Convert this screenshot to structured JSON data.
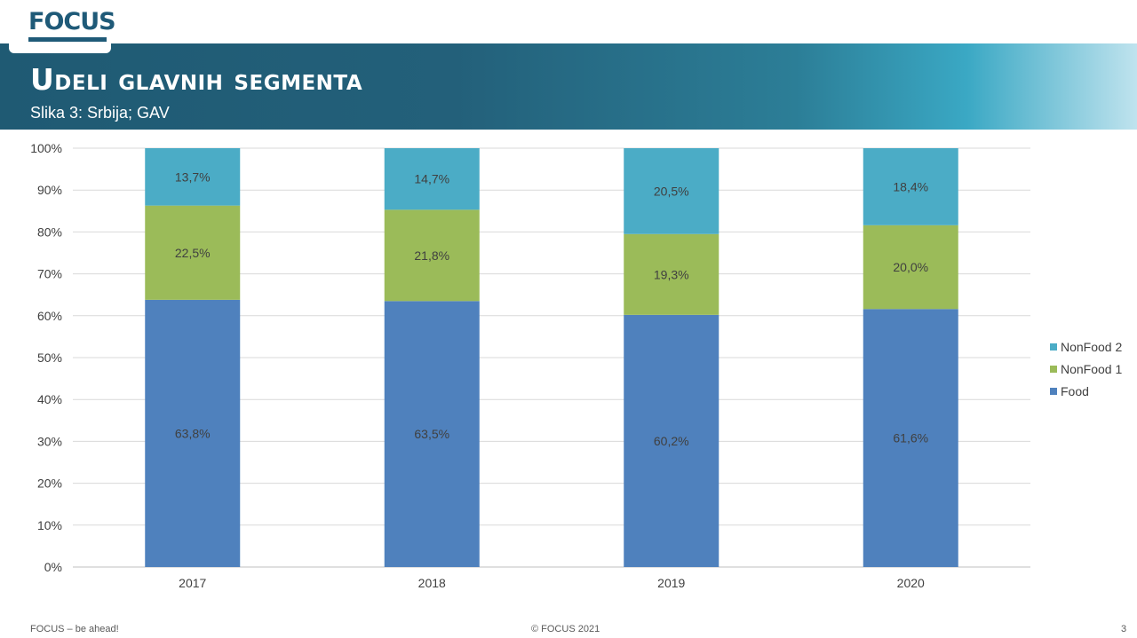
{
  "header": {
    "logo": "FOCUS",
    "title": "Udeli glavnih segmenta",
    "subtitle": "Slika 3: Srbija; GAV"
  },
  "footer": {
    "left": "FOCUS – be ahead!",
    "center": "© FOCUS 2021",
    "page": "3"
  },
  "chart_data": {
    "type": "bar",
    "stacked": true,
    "percent_stacked": true,
    "categories": [
      "2017",
      "2018",
      "2019",
      "2020"
    ],
    "series": [
      {
        "name": "Food",
        "color": "#4f81bd",
        "values": [
          63.8,
          63.5,
          60.2,
          61.6
        ],
        "labels": [
          "63,8%",
          "63,5%",
          "60,2%",
          "61,6%"
        ]
      },
      {
        "name": "NonFood 1",
        "color": "#9bbb59",
        "values": [
          22.5,
          21.8,
          19.3,
          20.0
        ],
        "labels": [
          "22,5%",
          "21,8%",
          "19,3%",
          "20,0%"
        ]
      },
      {
        "name": "NonFood 2",
        "color": "#4bacc6",
        "values": [
          13.7,
          14.7,
          20.5,
          18.4
        ],
        "labels": [
          "13,7%",
          "14,7%",
          "20,5%",
          "18,4%"
        ]
      }
    ],
    "y_ticks": [
      "0%",
      "10%",
      "20%",
      "30%",
      "40%",
      "50%",
      "60%",
      "70%",
      "80%",
      "90%",
      "100%"
    ],
    "ylim": [
      0,
      100
    ],
    "grid": true,
    "legend_position": "right"
  }
}
